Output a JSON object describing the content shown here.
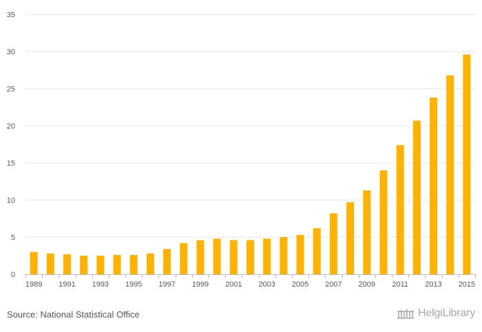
{
  "chart_data": {
    "type": "bar",
    "title": "",
    "xlabel": "",
    "ylabel": "",
    "categories": [
      "1989",
      "1990",
      "1991",
      "1992",
      "1993",
      "1994",
      "1995",
      "1996",
      "1997",
      "1998",
      "1999",
      "2000",
      "2001",
      "2002",
      "2003",
      "2004",
      "2005",
      "2006",
      "2007",
      "2008",
      "2009",
      "2010",
      "2011",
      "2012",
      "2013",
      "2014",
      "2015"
    ],
    "values": [
      3.0,
      2.8,
      2.7,
      2.5,
      2.5,
      2.6,
      2.6,
      2.8,
      3.4,
      4.2,
      4.6,
      4.8,
      4.6,
      4.6,
      4.8,
      5.0,
      5.3,
      6.2,
      8.2,
      9.7,
      11.3,
      14.0,
      17.4,
      20.7,
      23.8,
      26.8,
      29.6
    ],
    "ylim": [
      0,
      35
    ],
    "yticks": [
      0,
      5,
      10,
      15,
      20,
      25,
      30,
      35
    ],
    "xtick_labels": [
      "1989",
      "1991",
      "1993",
      "1995",
      "1997",
      "1999",
      "2001",
      "2003",
      "2005",
      "2007",
      "2009",
      "2011",
      "2013",
      "2015"
    ],
    "grid": true,
    "bar_color": "#FFB300"
  },
  "footer": {
    "source": "Source: National Statistical Office",
    "logo_text": "HelgiLibrary"
  },
  "icons": {
    "logo": "helgi-library-logo-icon"
  },
  "colors": {
    "grid": "#e6e6e6",
    "axis": "#bbbbbb",
    "text": "#555555",
    "logo": "#a8a8a8"
  }
}
